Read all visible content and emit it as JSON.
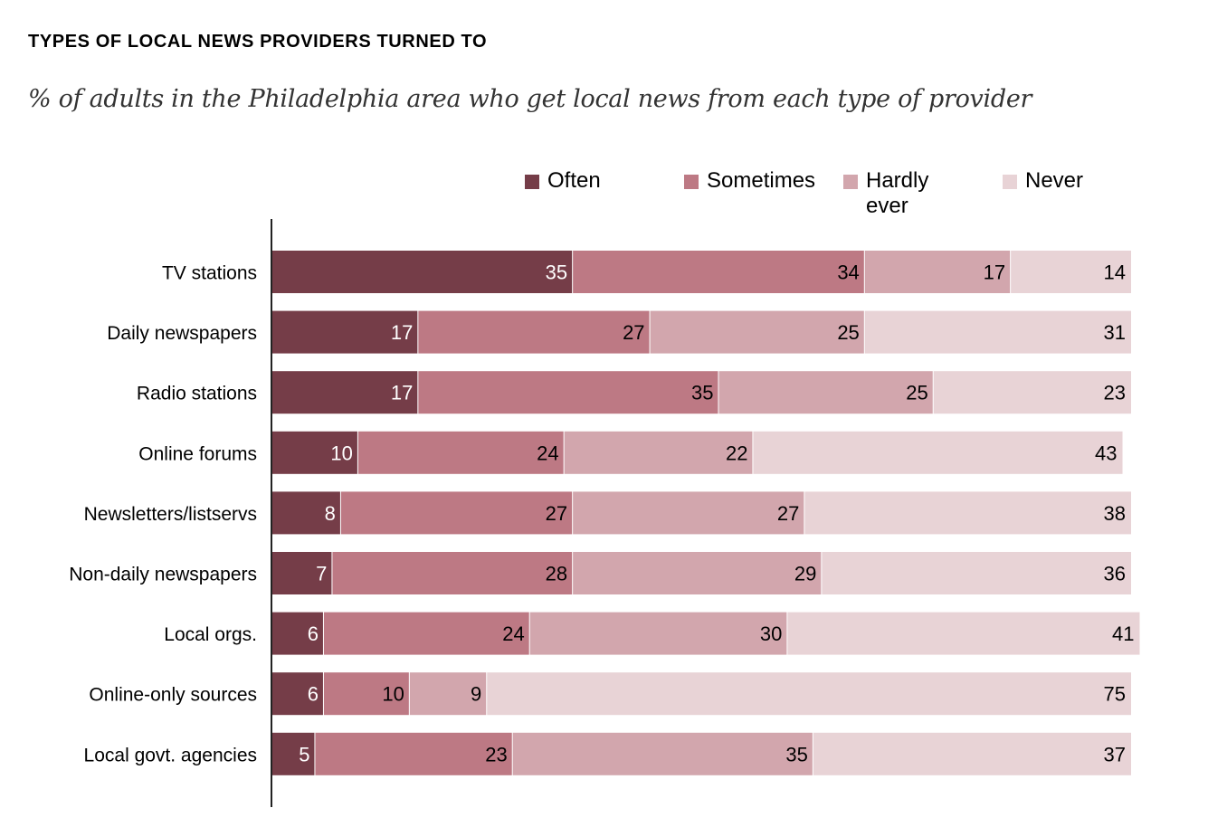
{
  "chart_data": {
    "type": "bar",
    "orientation": "horizontal",
    "stacked": true,
    "title": "TYPES OF LOCAL NEWS PROVIDERS TURNED TO",
    "subtitle": "% of adults in the Philadelphia area who get local news from each type of provider",
    "xlabel": "",
    "ylabel": "",
    "xlim": [
      0,
      100
    ],
    "grid": false,
    "legend_position": "top",
    "categories": [
      "TV stations",
      "Daily newspapers",
      "Radio stations",
      "Online forums",
      "Newsletters/listservs",
      "Non-daily newspapers",
      "Local orgs.",
      "Online-only sources",
      "Local govt. agencies"
    ],
    "series": [
      {
        "name": "Often",
        "legend_label": "Often",
        "color": "#753d48",
        "label_color": "#ffffff",
        "values": [
          35,
          17,
          17,
          10,
          8,
          7,
          6,
          6,
          5
        ]
      },
      {
        "name": "Sometimes",
        "legend_label": "Sometimes",
        "color": "#bd7984",
        "label_color": "#000000",
        "values": [
          34,
          27,
          35,
          24,
          27,
          28,
          24,
          10,
          23
        ]
      },
      {
        "name": "Hardly ever",
        "legend_label": "Hardly\never",
        "color": "#d2a6ad",
        "label_color": "#000000",
        "values": [
          17,
          25,
          25,
          22,
          27,
          29,
          30,
          9,
          35
        ]
      },
      {
        "name": "Never",
        "legend_label": "Never",
        "color": "#e8d3d6",
        "label_color": "#000000",
        "values": [
          14,
          31,
          23,
          43,
          38,
          36,
          41,
          75,
          37
        ]
      }
    ]
  }
}
